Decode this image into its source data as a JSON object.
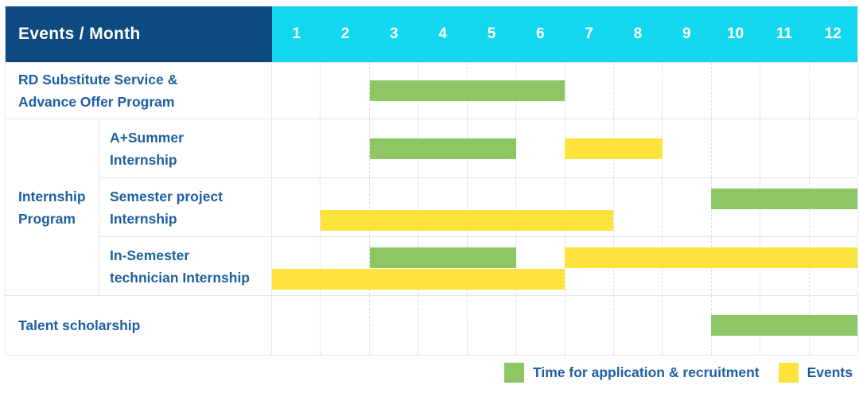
{
  "header": {
    "title": "Events / Month",
    "months": [
      "1",
      "2",
      "3",
      "4",
      "5",
      "6",
      "7",
      "8",
      "9",
      "10",
      "11",
      "12"
    ]
  },
  "colors": {
    "header_bg": "#0e4a7f",
    "months_bg": "#12d8ef",
    "green": "#8dc665",
    "yellow": "#ffe33d",
    "label_text": "#1e5fa3",
    "grid_line": "#e6e6e6"
  },
  "sections": [
    {
      "type": "single",
      "label": "RD Substitute Service &\nAdvance Offer Program",
      "bars": [
        {
          "color": "green",
          "start": 3,
          "end": 7,
          "lane": "center"
        }
      ]
    },
    {
      "type": "group",
      "label": "Internship\nProgram",
      "children": [
        {
          "label": "A+Summer\nInternship",
          "bars": [
            {
              "color": "green",
              "start": 3,
              "end": 6,
              "lane": "center"
            },
            {
              "color": "yellow",
              "start": 7,
              "end": 9,
              "lane": "center"
            }
          ]
        },
        {
          "label": "Semester project\nInternship",
          "bars": [
            {
              "color": "green",
              "start": 10,
              "end": 13,
              "lane": "top"
            },
            {
              "color": "yellow",
              "start": 2,
              "end": 8,
              "lane": "bottom"
            }
          ]
        },
        {
          "label": "In-Semester\ntechnician Internship",
          "bars": [
            {
              "color": "green",
              "start": 3,
              "end": 6,
              "lane": "top"
            },
            {
              "color": "yellow",
              "start": 7,
              "end": 13,
              "lane": "top"
            },
            {
              "color": "yellow",
              "start": 1,
              "end": 7,
              "lane": "bottom"
            }
          ]
        }
      ]
    },
    {
      "type": "single",
      "label": "Talent scholarship",
      "bars": [
        {
          "color": "green",
          "start": 10,
          "end": 13,
          "lane": "center"
        }
      ]
    }
  ],
  "legend": [
    {
      "key": "green",
      "label": "Time for application & recruitment"
    },
    {
      "key": "yellow",
      "label": "Events"
    }
  ],
  "chart_data": {
    "type": "gantt",
    "title": "Events / Month",
    "x_axis": {
      "label": "Month",
      "ticks": [
        1,
        2,
        3,
        4,
        5,
        6,
        7,
        8,
        9,
        10,
        11,
        12
      ],
      "range": [
        1,
        12
      ]
    },
    "series_legend": [
      "Time for application & recruitment",
      "Events"
    ],
    "rows": [
      {
        "group": "",
        "label": "RD Substitute Service & Advance Offer Program",
        "bars": [
          {
            "series": "Time for application & recruitment",
            "start_month": 3,
            "end_month": 6
          }
        ]
      },
      {
        "group": "Internship Program",
        "label": "A+Summer Internship",
        "bars": [
          {
            "series": "Time for application & recruitment",
            "start_month": 3,
            "end_month": 5
          },
          {
            "series": "Events",
            "start_month": 7,
            "end_month": 8
          }
        ]
      },
      {
        "group": "Internship Program",
        "label": "Semester project Internship",
        "bars": [
          {
            "series": "Time for application & recruitment",
            "start_month": 10,
            "end_month": 12
          },
          {
            "series": "Events",
            "start_month": 2,
            "end_month": 7
          }
        ]
      },
      {
        "group": "Internship Program",
        "label": "In-Semester technician Internship",
        "bars": [
          {
            "series": "Time for application & recruitment",
            "start_month": 3,
            "end_month": 5
          },
          {
            "series": "Events",
            "start_month": 7,
            "end_month": 12
          },
          {
            "series": "Events",
            "start_month": 1,
            "end_month": 6
          }
        ]
      },
      {
        "group": "",
        "label": "Talent scholarship",
        "bars": [
          {
            "series": "Time for application & recruitment",
            "start_month": 10,
            "end_month": 12
          }
        ]
      }
    ],
    "layout": {
      "grid": "dashed vertical month separators",
      "legend_position": "bottom-right"
    }
  }
}
